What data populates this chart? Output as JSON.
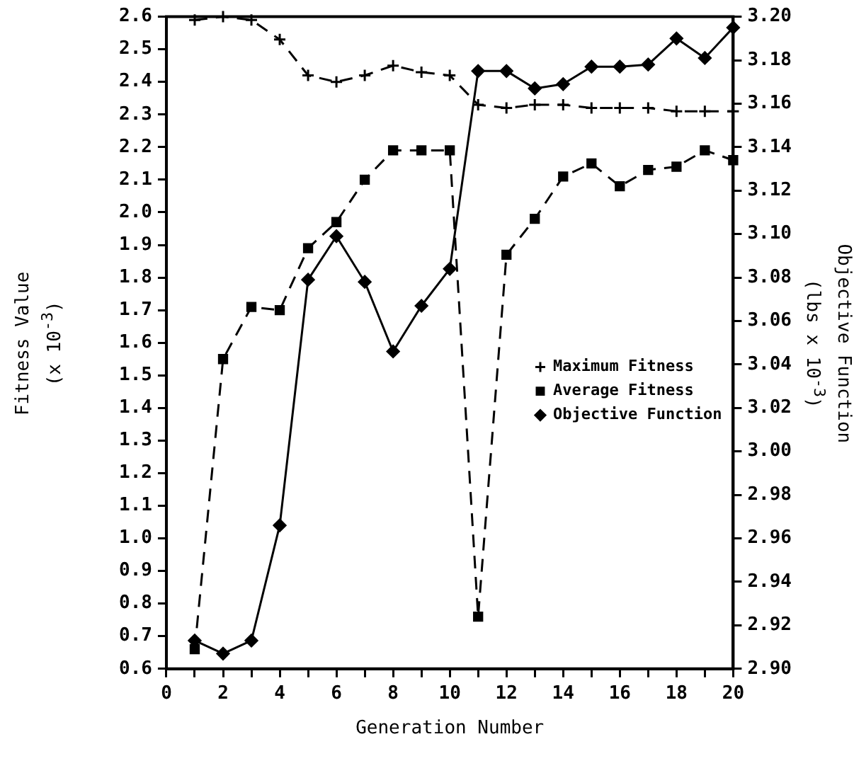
{
  "chart_data": {
    "type": "line",
    "xlabel": "Generation Number",
    "ylabel": "Fitness Value\n(x 10$^{-3}$)",
    "y2label": "Objective Function\n(lbs x 10$^{-3}$)",
    "x": [
      1,
      2,
      3,
      4,
      5,
      6,
      7,
      8,
      9,
      10,
      11,
      12,
      13,
      14,
      15,
      16,
      17,
      18,
      19,
      20
    ],
    "series": [
      {
        "name": "Maximum Fitness",
        "color": "#000000",
        "marker": "cross",
        "line_style": "dashed",
        "values": [
          2.59,
          2.6,
          2.59,
          2.53,
          2.42,
          2.4,
          2.42,
          2.45,
          2.43,
          2.42,
          2.33,
          2.32,
          2.33,
          2.33,
          2.32,
          2.32,
          2.32,
          2.31,
          2.31,
          2.31
        ]
      },
      {
        "name": "Average Fitness",
        "color": "#000000",
        "marker": "square",
        "line_style": "dashed",
        "values": [
          0.66,
          1.55,
          1.71,
          1.7,
          1.89,
          1.97,
          2.1,
          2.19,
          2.19,
          2.19,
          0.76,
          1.87,
          1.98,
          2.11,
          2.15,
          2.08,
          2.13,
          2.14,
          2.19,
          2.16
        ]
      },
      {
        "name": "Objective Function",
        "color": "#000000",
        "marker": "diamond",
        "line_style": "solid",
        "axis": "y2",
        "values": [
          2.913,
          2.907,
          2.913,
          2.966,
          3.079,
          3.099,
          3.078,
          3.046,
          3.067,
          3.084,
          3.175,
          3.175,
          3.167,
          3.169,
          3.177,
          3.177,
          3.178,
          3.19,
          3.181,
          3.195
        ]
      }
    ],
    "xlim": [
      0,
      20
    ],
    "xticks": [
      0,
      {
        "value": 1,
        "label": null
      },
      2,
      {
        "value": 3,
        "label": null
      },
      4,
      {
        "value": 5,
        "label": null
      },
      6,
      {
        "value": 7,
        "label": null
      },
      8,
      {
        "value": 9,
        "label": null
      },
      10,
      {
        "value": 11,
        "label": null
      },
      12,
      {
        "value": 13,
        "label": null
      },
      14,
      {
        "value": 15,
        "label": null
      },
      16,
      {
        "value": 17,
        "label": null
      },
      18,
      {
        "value": 19,
        "label": null
      },
      20
    ],
    "ylim": [
      0.6,
      2.6
    ],
    "yticks": [
      0.6,
      0.7,
      0.8,
      0.9,
      {
        "value": 1,
        "label": "1.0"
      },
      1.1,
      1.2,
      1.3,
      1.4,
      1.5,
      1.6,
      1.7,
      1.8,
      1.9,
      {
        "value": 2,
        "label": "2.0"
      },
      2.1,
      2.2,
      2.3,
      2.4,
      2.5,
      2.6
    ],
    "y2lim": [
      2.9,
      3.2
    ],
    "y2ticks": [
      {
        "value": 2.9,
        "label": "2.90"
      },
      2.92,
      2.94,
      2.96,
      2.98,
      {
        "value": 3,
        "label": "3.00"
      },
      3.02,
      3.04,
      3.06,
      3.08,
      {
        "value": 3.1,
        "label": "3.10"
      },
      3.12,
      3.14,
      3.16,
      3.18,
      {
        "value": 3.2,
        "label": "3.20"
      }
    ],
    "grid": false,
    "legend": "right"
  }
}
